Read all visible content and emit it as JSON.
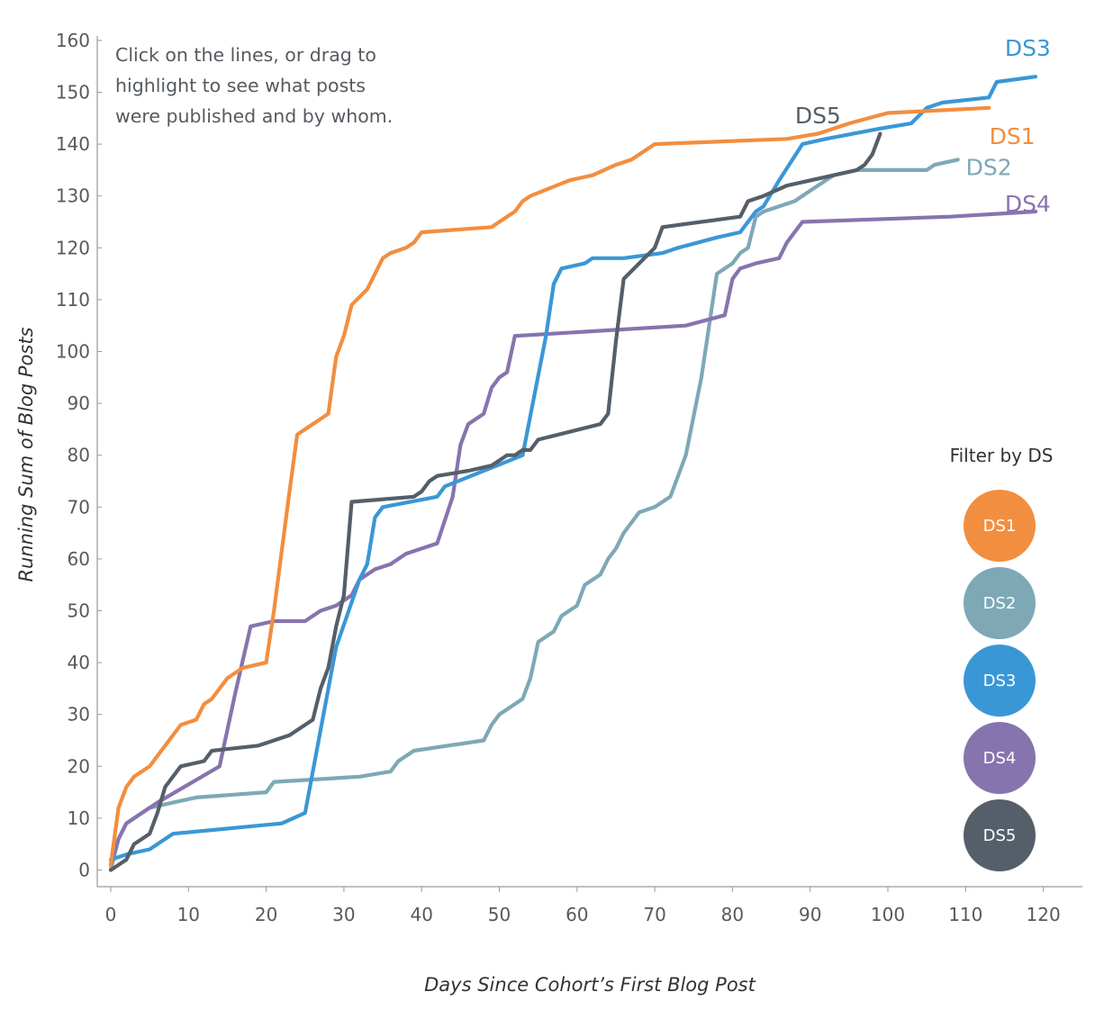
{
  "annotation": {
    "lines": [
      "Click on the lines, or drag to",
      "highlight to see what posts",
      "were published and by whom."
    ]
  },
  "filter": {
    "title": "Filter by DS",
    "buttons": [
      {
        "label": "DS1",
        "color": "#f28e3f"
      },
      {
        "label": "DS2",
        "color": "#7ea8b6"
      },
      {
        "label": "DS3",
        "color": "#3a97d6"
      },
      {
        "label": "DS4",
        "color": "#8674ae"
      },
      {
        "label": "DS5",
        "color": "#555f69"
      }
    ]
  },
  "chart_data": {
    "type": "line",
    "xlabel": "Days Since Cohort’s First Blog Post",
    "ylabel": "Running Sum of Blog Posts",
    "xlim": [
      0,
      122
    ],
    "ylim": [
      -2,
      163
    ],
    "xticks": [
      0,
      10,
      20,
      30,
      40,
      50,
      60,
      70,
      80,
      90,
      100,
      110,
      120
    ],
    "yticks": [
      0,
      10,
      20,
      30,
      40,
      50,
      60,
      70,
      80,
      90,
      100,
      110,
      120,
      130,
      140,
      150,
      160
    ],
    "grid": false,
    "series": [
      {
        "name": "DS1",
        "color": "#f28e3f",
        "label_at": [
          116,
          140
        ],
        "x": [
          0,
          1,
          2,
          3,
          5,
          9,
          11,
          12,
          13,
          15,
          17,
          20,
          21,
          23,
          24,
          28,
          29,
          30,
          31,
          33,
          35,
          36,
          38,
          39,
          40,
          49,
          51,
          52,
          53,
          54,
          59,
          62,
          65,
          67,
          70,
          87,
          91,
          95,
          100,
          113
        ],
        "y": [
          1,
          12,
          16,
          18,
          20,
          28,
          29,
          32,
          33,
          37,
          39,
          40,
          50,
          73,
          84,
          88,
          99,
          103,
          109,
          112,
          118,
          119,
          120,
          121,
          123,
          124,
          126,
          127,
          129,
          130,
          133,
          134,
          136,
          137,
          140,
          141,
          142,
          144,
          146,
          147
        ]
      },
      {
        "name": "DS2",
        "color": "#7ea8b6",
        "label_at": [
          113,
          134
        ],
        "x": [
          0,
          1,
          2,
          5,
          8,
          11,
          20,
          21,
          32,
          36,
          37,
          39,
          48,
          49,
          50,
          53,
          54,
          55,
          57,
          58,
          60,
          61,
          63,
          64,
          65,
          66,
          68,
          70,
          72,
          74,
          76,
          78,
          80,
          81,
          82,
          83,
          84,
          88,
          90,
          93,
          96,
          98,
          105,
          106,
          109
        ],
        "y": [
          0,
          6,
          9,
          12,
          13,
          14,
          15,
          17,
          18,
          19,
          21,
          23,
          25,
          28,
          30,
          33,
          37,
          44,
          46,
          49,
          51,
          55,
          57,
          60,
          62,
          65,
          69,
          70,
          72,
          80,
          95,
          115,
          117,
          119,
          120,
          126,
          127,
          129,
          131,
          134,
          135,
          135,
          135,
          136,
          137
        ]
      },
      {
        "name": "DS3",
        "color": "#3a97d6",
        "label_at": [
          118,
          157
        ],
        "x": [
          0,
          2,
          5,
          8,
          22,
          25,
          27,
          29,
          32,
          33,
          34,
          35,
          42,
          43,
          53,
          56,
          57,
          58,
          61,
          62,
          66,
          71,
          73,
          78,
          81,
          83,
          84,
          86,
          89,
          92,
          99,
          103,
          105,
          107,
          113,
          114,
          119
        ],
        "y": [
          2,
          3,
          4,
          7,
          9,
          11,
          27,
          43,
          56,
          59,
          68,
          70,
          72,
          74,
          80,
          103,
          113,
          116,
          117,
          118,
          118,
          119,
          120,
          122,
          123,
          127,
          128,
          133,
          140,
          141,
          143,
          144,
          147,
          148,
          149,
          152,
          153
        ]
      },
      {
        "name": "DS4",
        "color": "#8674ae",
        "label_at": [
          118,
          127
        ],
        "x": [
          0,
          1,
          2,
          4,
          6,
          14,
          16,
          18,
          21,
          25,
          27,
          29,
          31,
          32,
          34,
          36,
          38,
          42,
          44,
          45,
          46,
          48,
          49,
          50,
          51,
          52,
          74,
          79,
          80,
          81,
          83,
          86,
          87,
          88,
          89,
          108,
          119
        ],
        "y": [
          1,
          6,
          9,
          11,
          13,
          20,
          34,
          47,
          48,
          48,
          50,
          51,
          53,
          56,
          58,
          59,
          61,
          63,
          72,
          82,
          86,
          88,
          93,
          95,
          96,
          103,
          105,
          107,
          114,
          116,
          117,
          118,
          121,
          123,
          125,
          126,
          127
        ]
      },
      {
        "name": "DS5",
        "color": "#555f69",
        "label_at": [
          91,
          144
        ],
        "x": [
          0,
          2,
          3,
          5,
          6,
          7,
          9,
          12,
          13,
          19,
          23,
          26,
          27,
          28,
          29,
          30,
          31,
          39,
          40,
          41,
          42,
          46,
          49,
          50,
          51,
          52,
          53,
          54,
          55,
          63,
          64,
          65,
          66,
          68,
          70,
          71,
          81,
          82,
          84,
          87,
          93,
          96,
          97,
          98,
          99
        ],
        "y": [
          0,
          2,
          5,
          7,
          11,
          16,
          20,
          21,
          23,
          24,
          26,
          29,
          35,
          39,
          47,
          53,
          71,
          72,
          73,
          75,
          76,
          77,
          78,
          79,
          80,
          80,
          81,
          81,
          83,
          86,
          88,
          102,
          114,
          117,
          120,
          124,
          126,
          129,
          130,
          132,
          134,
          135,
          136,
          138,
          142
        ]
      }
    ]
  }
}
